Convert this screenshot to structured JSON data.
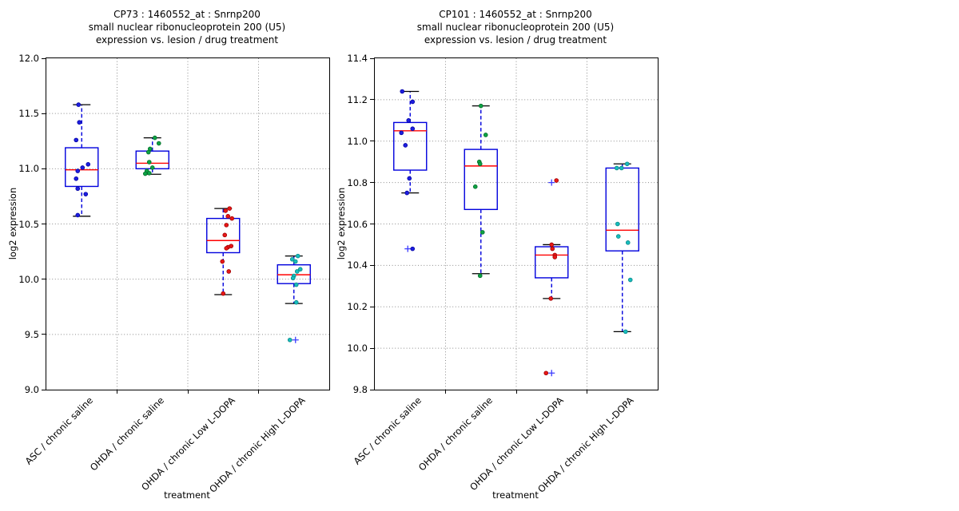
{
  "figure": {
    "background": "#ffffff",
    "colors": {
      "box": "#0000dd",
      "median": "#ff0000",
      "whisker": "#0000dd",
      "cap": "#000000",
      "flier": "#3c3cff",
      "grid": "#8c8c8c",
      "frame": "#000000"
    }
  },
  "chart_data": [
    {
      "type": "boxplot",
      "title_lines": [
        "CP73 : 1460552_at : Snrnp200",
        "small nuclear ribonucleoprotein 200 (U5)",
        "expression vs. lesion / drug treatment"
      ],
      "xlabel": "treatment",
      "ylabel": "log2 expression",
      "ylim": [
        9.0,
        12.0
      ],
      "yticks": [
        "12.0",
        "11.5",
        "11.0",
        "10.5",
        "10.0",
        "9.5",
        "9.0"
      ],
      "categories": [
        "ASC / chronic saline",
        "OHDA / chronic saline",
        "OHDA / chronic Low L-DOPA",
        "OHDA / chronic High L-DOPA"
      ],
      "groups": [
        {
          "point_color": "#1e1ee0",
          "point_edge": "#0000a0",
          "box": {
            "q1": 10.84,
            "median": 10.99,
            "q3": 11.19,
            "whisker_low": 10.57,
            "whisker_high": 11.58
          },
          "points": [
            {
              "v": 11.58,
              "dx": -4
            },
            {
              "v": 11.42,
              "dx": -3
            },
            {
              "v": 11.26,
              "dx": -7
            },
            {
              "v": 11.04,
              "dx": 8
            },
            {
              "v": 11.01,
              "dx": 1
            },
            {
              "v": 10.98,
              "dx": -5
            },
            {
              "v": 10.91,
              "dx": -7
            },
            {
              "v": 10.82,
              "dx": -5
            },
            {
              "v": 10.77,
              "dx": 5
            },
            {
              "v": 10.58,
              "dx": -5
            }
          ],
          "fliers": []
        },
        {
          "point_color": "#0da344",
          "point_edge": "#046a28",
          "box": {
            "q1": 11.0,
            "median": 11.05,
            "q3": 11.16,
            "whisker_low": 10.95,
            "whisker_high": 11.28
          },
          "points": [
            {
              "v": 11.28,
              "dx": 3
            },
            {
              "v": 11.23,
              "dx": 8
            },
            {
              "v": 11.18,
              "dx": -3
            },
            {
              "v": 11.15,
              "dx": -5
            },
            {
              "v": 11.06,
              "dx": -4
            },
            {
              "v": 11.01,
              "dx": 0
            },
            {
              "v": 10.98,
              "dx": -7
            },
            {
              "v": 10.96,
              "dx": -4
            },
            {
              "v": 10.955,
              "dx": -9
            }
          ],
          "fliers": []
        },
        {
          "point_color": "#e81717",
          "point_edge": "#9e0000",
          "box": {
            "q1": 10.24,
            "median": 10.35,
            "q3": 10.55,
            "whisker_low": 9.86,
            "whisker_high": 10.64
          },
          "points": [
            {
              "v": 10.64,
              "dx": 8
            },
            {
              "v": 10.62,
              "dx": 3
            },
            {
              "v": 10.57,
              "dx": 6
            },
            {
              "v": 10.55,
              "dx": 11
            },
            {
              "v": 10.49,
              "dx": 4
            },
            {
              "v": 10.4,
              "dx": 2
            },
            {
              "v": 10.3,
              "dx": 10
            },
            {
              "v": 10.29,
              "dx": 6
            },
            {
              "v": 10.28,
              "dx": 4
            },
            {
              "v": 10.16,
              "dx": -1
            },
            {
              "v": 10.07,
              "dx": 7
            },
            {
              "v": 9.87,
              "dx": 0
            }
          ],
          "fliers": []
        },
        {
          "point_color": "#17bdbd",
          "point_edge": "#0b8585",
          "box": {
            "q1": 9.96,
            "median": 10.04,
            "q3": 10.13,
            "whisker_low": 9.78,
            "whisker_high": 10.21
          },
          "points": [
            {
              "v": 10.21,
              "dx": 5
            },
            {
              "v": 10.18,
              "dx": -2
            },
            {
              "v": 10.16,
              "dx": 2
            },
            {
              "v": 10.09,
              "dx": 8
            },
            {
              "v": 10.07,
              "dx": 4
            },
            {
              "v": 10.03,
              "dx": 0
            },
            {
              "v": 10.01,
              "dx": -1
            },
            {
              "v": 9.95,
              "dx": 3
            },
            {
              "v": 9.79,
              "dx": 3
            },
            {
              "v": 9.45,
              "dx": -5
            }
          ],
          "fliers": [
            {
              "v": 9.45,
              "dx": 2
            }
          ]
        }
      ]
    },
    {
      "type": "boxplot",
      "title_lines": [
        "CP101 : 1460552_at : Snrnp200",
        "small nuclear ribonucleoprotein 200 (U5)",
        "expression vs. lesion / drug treatment"
      ],
      "xlabel": "treatment",
      "ylabel": "log2 expression",
      "ylim": [
        9.8,
        11.4
      ],
      "yticks": [
        "11.4",
        "11.2",
        "11.0",
        "10.8",
        "10.6",
        "10.4",
        "10.2",
        "10.0",
        "9.8"
      ],
      "categories": [
        "ASC / chronic saline",
        "OHDA / chronic saline",
        "OHDA / chronic Low L-DOPA",
        "OHDA / chronic High L-DOPA"
      ],
      "groups": [
        {
          "point_color": "#1e1ee0",
          "point_edge": "#0000a0",
          "box": {
            "q1": 10.86,
            "median": 11.05,
            "q3": 11.09,
            "whisker_low": 10.75,
            "whisker_high": 11.24
          },
          "points": [
            {
              "v": 11.24,
              "dx": -10
            },
            {
              "v": 11.19,
              "dx": 3
            },
            {
              "v": 11.1,
              "dx": -2
            },
            {
              "v": 11.06,
              "dx": 3
            },
            {
              "v": 11.04,
              "dx": -11
            },
            {
              "v": 10.98,
              "dx": -6
            },
            {
              "v": 10.82,
              "dx": -1
            },
            {
              "v": 10.75,
              "dx": -4
            },
            {
              "v": 10.48,
              "dx": 3
            }
          ],
          "fliers": [
            {
              "v": 10.48,
              "dx": -3
            }
          ]
        },
        {
          "point_color": "#0da344",
          "point_edge": "#046a28",
          "box": {
            "q1": 10.67,
            "median": 10.88,
            "q3": 10.96,
            "whisker_low": 10.36,
            "whisker_high": 11.17
          },
          "points": [
            {
              "v": 11.17,
              "dx": 0
            },
            {
              "v": 11.03,
              "dx": 6
            },
            {
              "v": 10.9,
              "dx": -2
            },
            {
              "v": 10.89,
              "dx": -1
            },
            {
              "v": 10.78,
              "dx": -7
            },
            {
              "v": 10.56,
              "dx": 2
            },
            {
              "v": 10.35,
              "dx": -1
            }
          ],
          "fliers": []
        },
        {
          "point_color": "#e81717",
          "point_edge": "#9e0000",
          "box": {
            "q1": 10.34,
            "median": 10.45,
            "q3": 10.49,
            "whisker_low": 10.24,
            "whisker_high": 10.5
          },
          "points": [
            {
              "v": 10.81,
              "dx": 6
            },
            {
              "v": 10.5,
              "dx": 0
            },
            {
              "v": 10.48,
              "dx": 1
            },
            {
              "v": 10.45,
              "dx": 4
            },
            {
              "v": 10.44,
              "dx": 4
            },
            {
              "v": 10.24,
              "dx": -1
            },
            {
              "v": 9.88,
              "dx": -7
            }
          ],
          "fliers": [
            {
              "v": 10.8,
              "dx": 0
            },
            {
              "v": 9.88,
              "dx": 0
            }
          ]
        },
        {
          "point_color": "#17bdbd",
          "point_edge": "#0b8585",
          "box": {
            "q1": 10.47,
            "median": 10.57,
            "q3": 10.87,
            "whisker_low": 10.08,
            "whisker_high": 10.89
          },
          "points": [
            {
              "v": 10.89,
              "dx": 6
            },
            {
              "v": 10.87,
              "dx": -7
            },
            {
              "v": 10.87,
              "dx": -1
            },
            {
              "v": 10.6,
              "dx": -6
            },
            {
              "v": 10.54,
              "dx": -5
            },
            {
              "v": 10.51,
              "dx": 7
            },
            {
              "v": 10.33,
              "dx": 10
            },
            {
              "v": 10.08,
              "dx": 4
            }
          ],
          "fliers": []
        }
      ]
    }
  ]
}
